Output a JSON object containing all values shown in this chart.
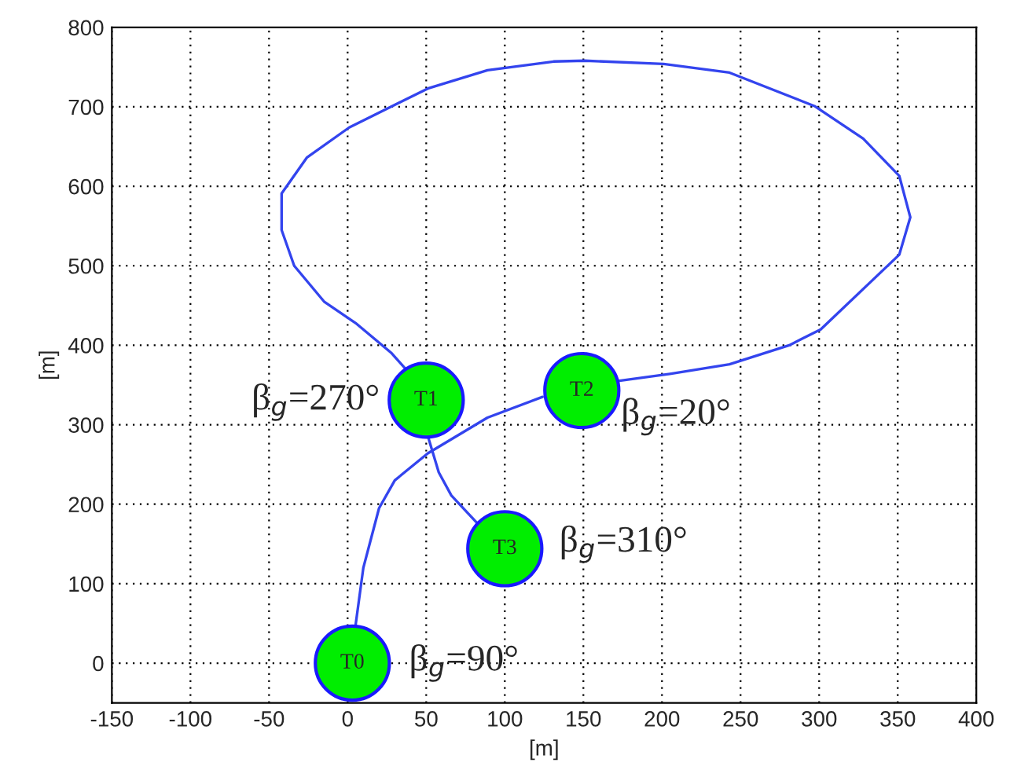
{
  "chart_data": {
    "type": "line",
    "xlabel": "[m]",
    "ylabel": "[m]",
    "xlim": [
      -150,
      400
    ],
    "ylim": [
      -50,
      800
    ],
    "xticks": [
      -150,
      -100,
      -50,
      0,
      50,
      100,
      150,
      200,
      250,
      300,
      350,
      400
    ],
    "yticks": [
      0,
      100,
      200,
      300,
      400,
      500,
      600,
      700,
      800
    ],
    "grid": true,
    "series": [
      {
        "color": "#3344ee",
        "line_style": "solid",
        "marker": "none",
        "x": [
          5,
          10,
          20,
          30,
          51,
          89,
          124,
          149,
          172,
          205,
          243,
          281,
          301,
          351,
          358,
          351,
          328,
          297,
          243,
          201,
          151,
          131,
          89,
          51,
          1,
          -26,
          -42,
          -42,
          -34,
          -15,
          5,
          28,
          37,
          50,
          51,
          58,
          66,
          82
        ],
        "values": [
          47,
          120,
          195,
          230,
          264,
          309,
          335,
          null,
          355,
          364,
          376,
          400,
          420,
          514,
          561,
          613,
          660,
          701,
          743,
          754,
          758,
          757,
          746,
          723,
          674,
          636,
          591,
          545,
          500,
          455,
          428,
          390,
          370,
          null,
          286,
          240,
          211,
          177
        ]
      },
      {
        "type": "scatter",
        "color": "#00ee00",
        "marker": "circle",
        "x": [
          3,
          50,
          149,
          100
        ],
        "values": [
          0,
          331,
          343,
          144
        ],
        "value_labels": [
          "T0",
          "T1",
          "T2",
          "T3"
        ]
      }
    ],
    "annotations": [
      {
        "text": "β$_{g}$=90°",
        "x": 3,
        "y": 0
      },
      {
        "text": "β$_{g}$=270°",
        "x": 50,
        "y": 331
      },
      {
        "text": "β$_{g}$=20°",
        "x": 149,
        "y": 343
      },
      {
        "text": "β$_{g}$=310°",
        "x": 100,
        "y": 144
      }
    ]
  }
}
